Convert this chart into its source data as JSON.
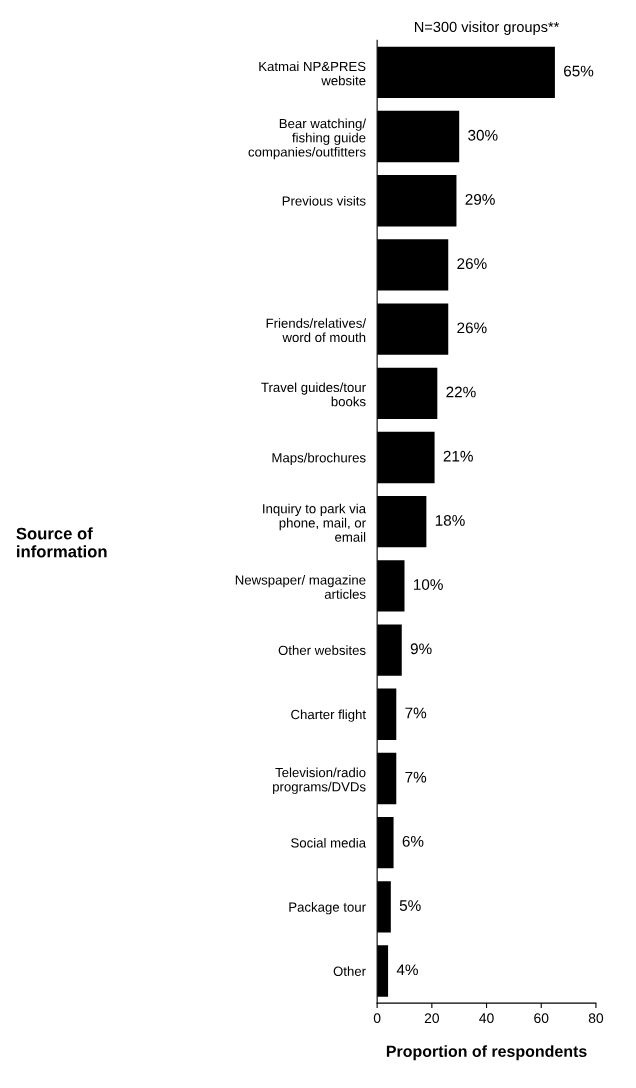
{
  "chart_data": {
    "type": "bar",
    "orientation": "horizontal",
    "title": "N=300 visitor groups**",
    "annotations": [
      "Source of\ninformation"
    ],
    "xlabel": "Proportion of respondents",
    "categories": [
      "Katmai NP&PRES\nwebsite",
      "Bear watching/\nfishing guide\ncompanies/outfitters",
      "Previous visits",
      null,
      "Friends/relatives/\nword of mouth",
      "Travel guides/tour\nbooks",
      "Maps/brochures",
      "Inquiry to park via\nphone, mail, or\nemail",
      "Newspaper/ magazine\narticles",
      "Other websites",
      "Charter flight",
      "Television/radio\nprograms/DVDs",
      "Social media",
      "Package tour",
      "Other"
    ],
    "values": [
      65,
      30,
      29,
      26,
      26,
      22,
      21,
      18,
      10,
      9,
      7,
      7,
      6,
      5,
      4
    ],
    "value_labels": [
      "65%",
      "30%",
      "29%",
      "26%",
      "26%",
      "22%",
      "21%",
      "18%",
      "10%",
      "9%",
      "7%",
      "7%",
      "6%",
      "5%",
      "4%"
    ],
    "color": "#000000",
    "xlim": [
      0,
      80
    ],
    "xticks": [
      0,
      20,
      40,
      60,
      80
    ],
    "grid": false,
    "legend": false
  }
}
